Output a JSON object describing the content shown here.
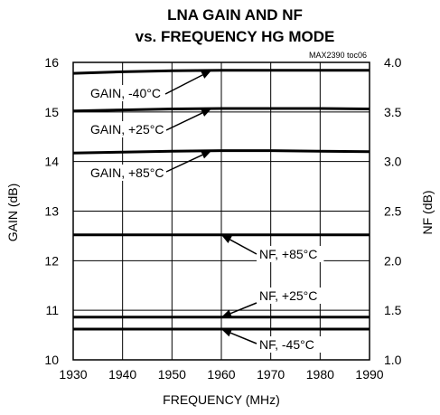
{
  "chart_data": {
    "type": "line",
    "title_line1": "LNA GAIN AND NF",
    "title_line2": "vs. FREQUENCY HG MODE",
    "tag": "MAX2390 toc06",
    "xlabel": "FREQUENCY (MHz)",
    "ylabel_left": "GAIN (dB)",
    "ylabel_right": "NF (dB)",
    "xlim": [
      1930,
      1990
    ],
    "ylim_left": [
      10,
      16
    ],
    "ylim_right": [
      1.0,
      4.0
    ],
    "x_ticks": [
      "1930",
      "1940",
      "1950",
      "1960",
      "1970",
      "1980",
      "1990"
    ],
    "y_left_ticks": [
      "10",
      "11",
      "12",
      "13",
      "14",
      "15",
      "16"
    ],
    "y_right_ticks": [
      "1.0",
      "1.5",
      "2.0",
      "2.5",
      "3.0",
      "3.5",
      "4.0"
    ],
    "grid": true,
    "series": [
      {
        "name": "GAIN, -40°C",
        "axis": "left",
        "x": [
          1930,
          1940,
          1950,
          1960,
          1970,
          1980,
          1990
        ],
        "values": [
          15.78,
          15.81,
          15.83,
          15.84,
          15.84,
          15.84,
          15.84
        ]
      },
      {
        "name": "GAIN, +25°C",
        "axis": "left",
        "x": [
          1930,
          1940,
          1950,
          1960,
          1970,
          1980,
          1990
        ],
        "values": [
          15.02,
          15.04,
          15.06,
          15.07,
          15.07,
          15.07,
          15.06
        ]
      },
      {
        "name": "GAIN, +85°C",
        "axis": "left",
        "x": [
          1930,
          1940,
          1950,
          1960,
          1970,
          1980,
          1990
        ],
        "values": [
          14.17,
          14.19,
          14.21,
          14.22,
          14.22,
          14.21,
          14.2
        ]
      },
      {
        "name": "NF, +85°C",
        "axis": "right",
        "x": [
          1930,
          1990
        ],
        "values": [
          2.26,
          2.26
        ]
      },
      {
        "name": "NF, +25°C",
        "axis": "right",
        "x": [
          1930,
          1990
        ],
        "values": [
          1.43,
          1.43
        ]
      },
      {
        "name": "NF, -45°C",
        "axis": "right",
        "x": [
          1930,
          1990
        ],
        "values": [
          1.31,
          1.31
        ]
      }
    ],
    "annotations": [
      {
        "text": "GAIN, -40°C",
        "series": 0,
        "target_x": 1958
      },
      {
        "text": "GAIN, +25°C",
        "series": 1,
        "target_x": 1958
      },
      {
        "text": "GAIN, +85°C",
        "series": 2,
        "target_x": 1958
      },
      {
        "text": "NF, +85°C",
        "series": 3,
        "target_x": 1960
      },
      {
        "text": "NF, +25°C",
        "series": 4,
        "target_x": 1960
      },
      {
        "text": "NF, -45°C",
        "series": 5,
        "target_x": 1960
      }
    ]
  }
}
